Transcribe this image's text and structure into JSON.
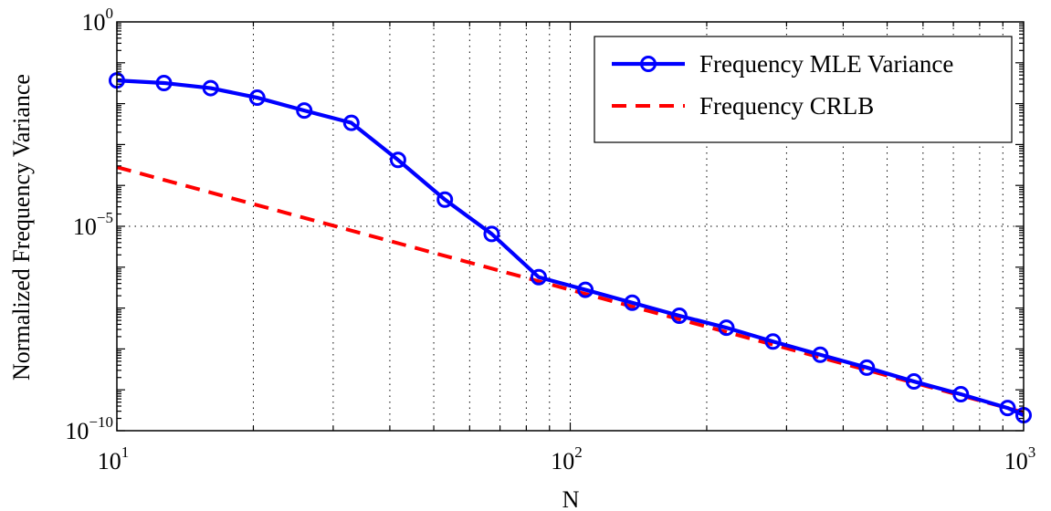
{
  "chart_data": {
    "type": "line",
    "title": "",
    "xlabel": "N",
    "ylabel": "Normalized Frequency Variance",
    "x_scale": "log",
    "y_scale": "log",
    "xlim": [
      10,
      1000
    ],
    "ylim": [
      1e-10,
      1
    ],
    "grid": true,
    "legend_position": "top-right",
    "x_ticks": [
      {
        "value": 10,
        "base": "10",
        "exp": "1"
      },
      {
        "value": 100,
        "base": "10",
        "exp": "2"
      },
      {
        "value": 1000,
        "base": "10",
        "exp": "3"
      }
    ],
    "y_ticks": [
      {
        "value": 1,
        "base": "10",
        "exp": "0"
      },
      {
        "value": 1e-05,
        "base": "10",
        "exp": "−5"
      },
      {
        "value": 1e-10,
        "base": "10",
        "exp": "−10"
      }
    ],
    "series": [
      {
        "name": "Frequency MLE Variance",
        "color": "#0000ff",
        "style": "solid",
        "marker": "circle",
        "x": [
          10,
          12.7,
          16.1,
          20.4,
          25.9,
          32.9,
          41.7,
          52.9,
          67.1,
          85.2,
          108,
          137,
          174,
          221,
          280,
          356,
          451,
          573,
          727,
          922,
          1000
        ],
        "y": [
          0.037,
          0.032,
          0.024,
          0.014,
          0.0068,
          0.0034,
          0.00042,
          4.5e-05,
          6.5e-06,
          5.7e-07,
          2.8e-07,
          1.35e-07,
          6.5e-08,
          3.3e-08,
          1.52e-08,
          7.2e-09,
          3.5e-09,
          1.6e-09,
          7.8e-10,
          3.6e-10,
          2.4e-10
        ]
      },
      {
        "name": "Frequency CRLB",
        "color": "#ff0000",
        "style": "dashed",
        "marker": "none",
        "x": [
          10,
          1000
        ],
        "y": [
          0.00028,
          2.8e-10
        ]
      }
    ]
  }
}
